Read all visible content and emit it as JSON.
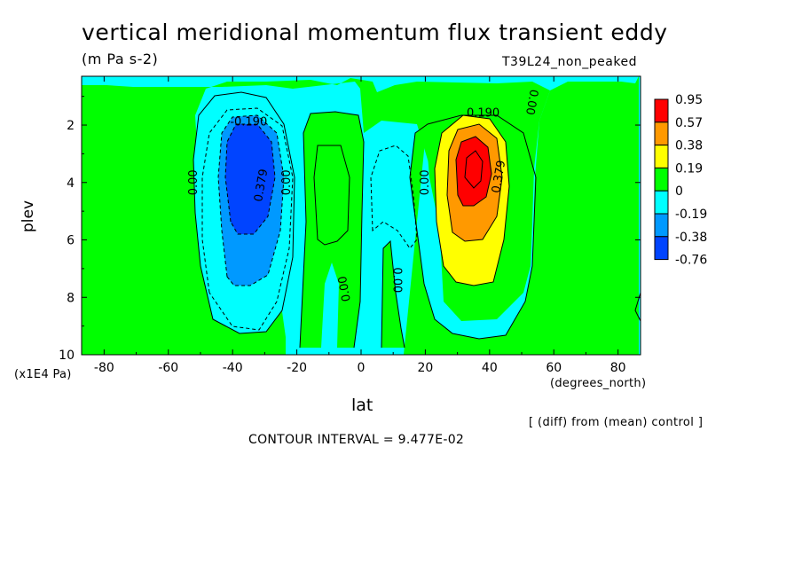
{
  "chart_data": {
    "type": "heatmap",
    "title": "vertical meridional momentum flux transient eddy",
    "subtitle": "(m Pa s-2)",
    "case_label": "T39L24_non_peaked",
    "xlabel": "lat",
    "xunits": "(degrees_north)",
    "ylabel": "plev",
    "yunits": "(x1E4 Pa)",
    "xlim": [
      -87,
      87
    ],
    "ylim": [
      10,
      0.3
    ],
    "x_ticks": [
      "-80",
      "-60",
      "-40",
      "-20",
      "0",
      "20",
      "40",
      "60",
      "80"
    ],
    "y_ticks": [
      "2",
      "4",
      "6",
      "8",
      "10"
    ],
    "footer_note": "[ (diff) from (mean) control ]",
    "contour_interval": "CONTOUR INTERVAL = 9.477E-02",
    "contour_labels": [
      "-0.190",
      "0.379",
      "0.00",
      "0.00",
      "0.00",
      "0.00",
      "0.00",
      "0.190",
      "0.379",
      "0.00"
    ],
    "legend": {
      "labels": [
        "0.95",
        "0.57",
        "0.38",
        "0.19",
        "0",
        "-0.19",
        "-0.38",
        "-0.76"
      ],
      "colors": [
        "#ff0000",
        "#ff9900",
        "#ffff00",
        "#00ff00",
        "#00ffff",
        "#0099ff",
        "#0044ff"
      ]
    },
    "fill_colors": {
      "background": "#00ffff",
      "positive_1": "#00ff00",
      "positive_2": "#ffff00",
      "positive_3": "#ff9900",
      "positive_4": "#ff0000",
      "negative_1": "#00ffff",
      "negative_2": "#0099ff",
      "negative_3": "#0044ff"
    }
  }
}
